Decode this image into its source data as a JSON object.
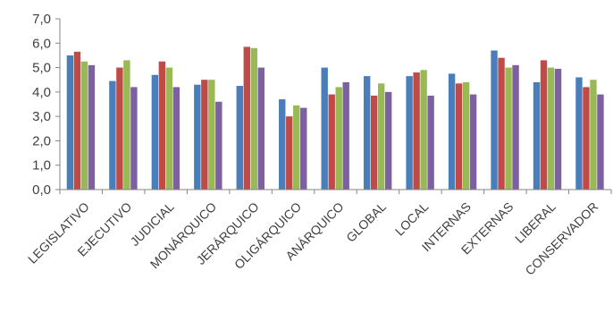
{
  "chart_data": {
    "type": "bar",
    "categories": [
      "LEGISLATIVO",
      "EJECUTIVO",
      "JUDICIAL",
      "MONÁRQUICO",
      "JERÁRQUICO",
      "OLIGÁRQUICO",
      "ANÁRQUICO",
      "GLOBAL",
      "LOCAL",
      "INTERNAS",
      "EXTERNAS",
      "LIBERAL",
      "CONSERVADOR"
    ],
    "series": [
      {
        "values": [
          5.5,
          4.45,
          4.7,
          4.3,
          4.25,
          3.7,
          5.0,
          4.65,
          4.65,
          4.75,
          5.7,
          4.4,
          4.6
        ]
      },
      {
        "values": [
          5.65,
          5.0,
          5.25,
          4.5,
          5.85,
          3.0,
          3.9,
          3.85,
          4.8,
          4.35,
          5.4,
          5.3,
          4.2
        ]
      },
      {
        "values": [
          5.25,
          5.3,
          5.0,
          4.5,
          5.8,
          3.45,
          4.2,
          4.35,
          4.9,
          4.4,
          5.0,
          5.0,
          4.5
        ]
      },
      {
        "values": [
          5.1,
          4.2,
          4.2,
          3.6,
          5.0,
          3.35,
          4.4,
          4.0,
          3.85,
          3.9,
          5.1,
          4.95,
          3.9
        ]
      }
    ],
    "colors": [
      "#4a7ebb",
      "#be4b48",
      "#98b954",
      "#7d60a0"
    ],
    "ylim": [
      0,
      7
    ],
    "yticks": [
      "0,0",
      "1,0",
      "2,0",
      "3,0",
      "4,0",
      "5,0",
      "6,0",
      "7,0"
    ],
    "grid": false,
    "title": "",
    "xlabel": "",
    "ylabel": ""
  }
}
